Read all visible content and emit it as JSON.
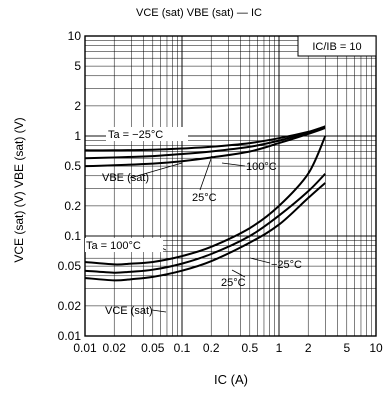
{
  "chart_data": {
    "type": "line",
    "title": "VCE (sat)  VBE (sat) —  IC",
    "xlabel": "IC (A)",
    "ylabel": "VCE (sat) (V)  VBE (sat) (V)",
    "x_scale": "log",
    "y_scale": "log",
    "xlim": [
      0.01,
      10
    ],
    "ylim": [
      0.01,
      10
    ],
    "x_ticks": [
      "0.01",
      "0.02",
      "0.05",
      "0.1",
      "0.2",
      "0.5",
      "1",
      "2",
      "5",
      "10"
    ],
    "y_ticks": [
      "10",
      "5",
      "2",
      "1",
      "0.5",
      "0.2",
      "0.1",
      "0.05",
      "0.02",
      "0.01"
    ],
    "grid": true,
    "condition_label": "IC/IB = 10",
    "group_labels": {
      "vbe": "VBE (sat)",
      "vce": "VCE (sat)"
    },
    "series": [
      {
        "name": "Ta = −25°C",
        "group": "vbe",
        "x": [
          0.01,
          0.02,
          0.05,
          0.1,
          0.2,
          0.5,
          1,
          2,
          3
        ],
        "y": [
          0.72,
          0.72,
          0.73,
          0.75,
          0.78,
          0.85,
          0.95,
          1.1,
          1.25
        ]
      },
      {
        "name": "25°C",
        "group": "vbe",
        "x": [
          0.01,
          0.02,
          0.05,
          0.1,
          0.2,
          0.5,
          1,
          2,
          3
        ],
        "y": [
          0.6,
          0.61,
          0.63,
          0.66,
          0.7,
          0.78,
          0.9,
          1.08,
          1.22
        ]
      },
      {
        "name": "100°C",
        "group": "vbe",
        "x": [
          0.01,
          0.02,
          0.05,
          0.1,
          0.2,
          0.5,
          1,
          2,
          3
        ],
        "y": [
          0.5,
          0.51,
          0.53,
          0.56,
          0.61,
          0.7,
          0.85,
          1.05,
          1.2
        ]
      },
      {
        "name": "Ta = 100°C",
        "group": "vce",
        "x": [
          0.01,
          0.02,
          0.03,
          0.05,
          0.1,
          0.2,
          0.5,
          1,
          2,
          3
        ],
        "y": [
          0.055,
          0.052,
          0.053,
          0.055,
          0.063,
          0.078,
          0.12,
          0.2,
          0.42,
          1.0
        ]
      },
      {
        "name": "−25°C",
        "group": "vce",
        "x": [
          0.01,
          0.02,
          0.03,
          0.05,
          0.1,
          0.2,
          0.5,
          1,
          2,
          3
        ],
        "y": [
          0.045,
          0.043,
          0.044,
          0.046,
          0.053,
          0.066,
          0.1,
          0.16,
          0.28,
          0.42
        ]
      },
      {
        "name": "25°C",
        "group": "vce",
        "x": [
          0.01,
          0.02,
          0.03,
          0.05,
          0.1,
          0.2,
          0.5,
          1,
          2,
          3
        ],
        "y": [
          0.038,
          0.036,
          0.037,
          0.039,
          0.045,
          0.056,
          0.086,
          0.13,
          0.24,
          0.34
        ]
      }
    ]
  }
}
